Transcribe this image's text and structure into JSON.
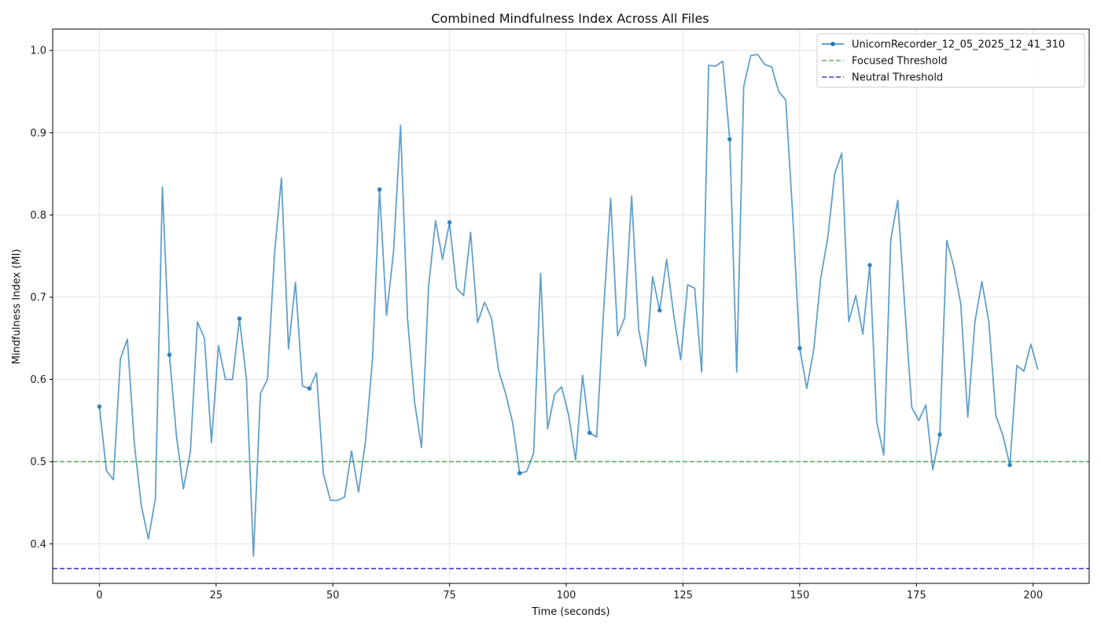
{
  "chart_data": {
    "type": "line",
    "title": "Combined Mindfulness Index Across All Files",
    "xlabel": "Time (seconds)",
    "ylabel": "Mindfulness Index (MI)",
    "xlim": [
      -10,
      212
    ],
    "ylim": [
      0.352,
      1.026
    ],
    "xticks": [
      0,
      25,
      50,
      75,
      100,
      125,
      150,
      175,
      200
    ],
    "yticks": [
      0.4,
      0.5,
      0.6,
      0.7,
      0.8,
      0.9,
      1.0
    ],
    "xtick_labels": [
      "0",
      "25",
      "50",
      "75",
      "100",
      "125",
      "150",
      "175",
      "200"
    ],
    "ytick_labels": [
      "0.4",
      "0.5",
      "0.6",
      "0.7",
      "0.8",
      "0.9",
      "1.0"
    ],
    "grid": true,
    "legend_position": "top-right",
    "series": [
      {
        "name": "UnicornRecorder_12_05_2025_12_41_310",
        "color": "#1f77b4",
        "marker_every": 10,
        "x": [
          0,
          1.5,
          3,
          4.5,
          6,
          7.5,
          9,
          10.5,
          12,
          13.5,
          15,
          16.5,
          18,
          19.5,
          21,
          22.5,
          24,
          25.5,
          27,
          28.5,
          30,
          31.5,
          33,
          34.5,
          36,
          37.5,
          39,
          40.5,
          42,
          43.5,
          45,
          46.5,
          48,
          49.5,
          51,
          52.5,
          54,
          55.5,
          57,
          58.5,
          60,
          61.5,
          63,
          64.5,
          66,
          67.5,
          69,
          70.5,
          72,
          73.5,
          75,
          76.5,
          78,
          79.5,
          81,
          82.5,
          84,
          85.5,
          87,
          88.5,
          90,
          91.5,
          93,
          94.5,
          96,
          97.5,
          99,
          100.5,
          102,
          103.5,
          105,
          106.5,
          108,
          109.5,
          111,
          112.5,
          114,
          115.5,
          117,
          118.5,
          120,
          121.5,
          123,
          124.5,
          126,
          127.5,
          129,
          130.5,
          132,
          133.5,
          135,
          136.5,
          138,
          139.5,
          141,
          142.5,
          144,
          145.5,
          147,
          148.5,
          150,
          151.5,
          153,
          154.5,
          156,
          157.5,
          159,
          160.5,
          162,
          163.5,
          165,
          166.5,
          168,
          169.5,
          171,
          172.5,
          174,
          175.5,
          177,
          178.5,
          180,
          181.5,
          183,
          184.5,
          186,
          187.5,
          189,
          190.5,
          192,
          193.5,
          195,
          196.5,
          198,
          199.5,
          201
        ],
        "y": [
          0.567,
          0.489,
          0.478,
          0.625,
          0.649,
          0.521,
          0.446,
          0.406,
          0.455,
          0.834,
          0.63,
          0.532,
          0.467,
          0.512,
          0.67,
          0.65,
          0.523,
          0.641,
          0.6,
          0.6,
          0.674,
          0.6,
          0.385,
          0.583,
          0.6,
          0.752,
          0.845,
          0.637,
          0.718,
          0.592,
          0.589,
          0.608,
          0.485,
          0.453,
          0.453,
          0.457,
          0.513,
          0.463,
          0.525,
          0.625,
          0.831,
          0.678,
          0.755,
          0.909,
          0.674,
          0.573,
          0.517,
          0.712,
          0.793,
          0.746,
          0.791,
          0.711,
          0.702,
          0.779,
          0.669,
          0.694,
          0.674,
          0.611,
          0.583,
          0.548,
          0.486,
          0.488,
          0.51,
          0.729,
          0.54,
          0.582,
          0.591,
          0.557,
          0.502,
          0.605,
          0.535,
          0.53,
          0.685,
          0.82,
          0.653,
          0.675,
          0.823,
          0.661,
          0.616,
          0.725,
          0.684,
          0.746,
          0.679,
          0.624,
          0.715,
          0.711,
          0.609,
          0.982,
          0.981,
          0.987,
          0.892,
          0.609,
          0.956,
          0.994,
          0.995,
          0.983,
          0.98,
          0.95,
          0.94,
          0.8,
          0.638,
          0.589,
          0.636,
          0.723,
          0.772,
          0.85,
          0.875,
          0.67,
          0.702,
          0.655,
          0.739,
          0.548,
          0.508,
          0.77,
          0.818,
          0.688,
          0.566,
          0.55,
          0.569,
          0.49,
          0.533,
          0.769,
          0.737,
          0.692,
          0.554,
          0.669,
          0.719,
          0.67,
          0.556,
          0.532,
          0.496,
          0.617,
          0.61,
          0.643,
          0.612
        ]
      }
    ],
    "thresholds": [
      {
        "name": "Focused Threshold",
        "value": 0.5,
        "color": "#2ca02c"
      },
      {
        "name": "Neutral Threshold",
        "value": 0.37,
        "color": "#0000bb"
      }
    ]
  }
}
